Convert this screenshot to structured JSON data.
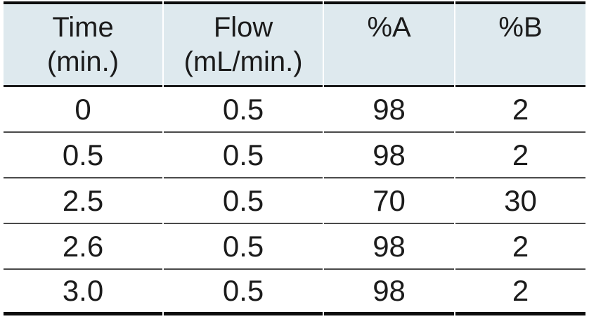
{
  "table": {
    "columns": [
      {
        "label": "Time",
        "sublabel": "(min.)"
      },
      {
        "label": "Flow",
        "sublabel": "(mL/min.)"
      },
      {
        "label": "%A",
        "sublabel": ""
      },
      {
        "label": "%B",
        "sublabel": ""
      }
    ],
    "rows": [
      [
        "0",
        "0.5",
        "98",
        "2"
      ],
      [
        "0.5",
        "0.5",
        "98",
        "2"
      ],
      [
        "2.5",
        "0.5",
        "70",
        "30"
      ],
      [
        "2.6",
        "0.5",
        "98",
        "2"
      ],
      [
        "3.0",
        "0.5",
        "98",
        "2"
      ]
    ]
  },
  "colors": {
    "header_bg": "#dee9ee",
    "border_strong": "#0d0d0d",
    "header_line": "#1a1a1a",
    "row_line": "#4a4a4a",
    "text": "#1b1b1b"
  },
  "chart_data": {
    "type": "table",
    "title": "",
    "columns": [
      "Time (min.)",
      "Flow (mL/min.)",
      "%A",
      "%B"
    ],
    "rows": [
      [
        0,
        0.5,
        98,
        2
      ],
      [
        0.5,
        0.5,
        98,
        2
      ],
      [
        2.5,
        0.5,
        70,
        30
      ],
      [
        2.6,
        0.5,
        98,
        2
      ],
      [
        3.0,
        0.5,
        98,
        2
      ]
    ]
  }
}
